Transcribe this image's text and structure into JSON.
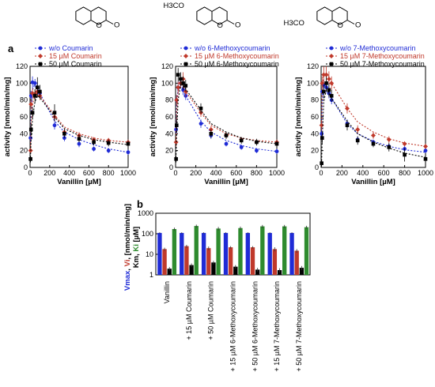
{
  "panel_labels": {
    "a": "a",
    "b": "b"
  },
  "structures": [
    {
      "name": "coumarin-structure",
      "substituent": ""
    },
    {
      "name": "6-methoxycoumarin-structure",
      "substituent": "H3CO"
    },
    {
      "name": "7-methoxycoumarin-structure",
      "substituent": "H3CO"
    }
  ],
  "colors": {
    "blue": "#1f2bd6",
    "red": "#c0392b",
    "black": "#000000",
    "green": "#2e8b2e"
  },
  "chart_data": [
    {
      "type": "scatter",
      "panel": "a-left",
      "xlabel": "Vanillin [µM]",
      "ylabel": "activity [nmol/min/mg]",
      "xlim": [
        0,
        1000
      ],
      "ylim": [
        0,
        120
      ],
      "xticks": [
        0,
        200,
        400,
        600,
        800,
        1000
      ],
      "yticks": [
        0,
        20,
        40,
        60,
        80,
        100,
        120
      ],
      "legend_position": "top-center",
      "series": [
        {
          "name": "w/o Coumarin",
          "color": "#1f2bd6",
          "marker": "circle",
          "x": [
            5,
            10,
            25,
            50,
            75,
            100,
            250,
            350,
            500,
            650,
            800,
            1000
          ],
          "y": [
            35,
            85,
            101,
            100,
            95,
            88,
            50,
            35,
            28,
            22,
            20,
            18
          ],
          "err": [
            5,
            6,
            7,
            5,
            6,
            5,
            5,
            4,
            4,
            3,
            3,
            3
          ],
          "fit_y": [
            40,
            62,
            92,
            100,
            95,
            88,
            55,
            42,
            33,
            27,
            22,
            18
          ]
        },
        {
          "name": "15 µM Coumarin",
          "color": "#c0392b",
          "marker": "diamond",
          "x": [
            5,
            10,
            25,
            50,
            75,
            100,
            250,
            350,
            500,
            650,
            800,
            1000
          ],
          "y": [
            20,
            75,
            88,
            87,
            90,
            85,
            60,
            42,
            38,
            33,
            32,
            30
          ],
          "err": [
            4,
            6,
            6,
            6,
            6,
            5,
            5,
            4,
            4,
            3,
            3,
            3
          ],
          "fit_y": [
            25,
            50,
            75,
            86,
            88,
            85,
            62,
            48,
            40,
            35,
            32,
            30
          ]
        },
        {
          "name": "50 µM Coumarin",
          "color": "#000000",
          "marker": "square",
          "x": [
            5,
            10,
            25,
            50,
            75,
            100,
            250,
            350,
            500,
            650,
            800,
            1000
          ],
          "y": [
            10,
            45,
            65,
            85,
            95,
            90,
            65,
            40,
            34,
            30,
            29,
            28
          ],
          "err": [
            4,
            7,
            7,
            8,
            12,
            8,
            10,
            5,
            4,
            4,
            4,
            4
          ],
          "fit_y": [
            12,
            30,
            58,
            78,
            85,
            83,
            60,
            46,
            38,
            33,
            30,
            27
          ]
        }
      ]
    },
    {
      "type": "scatter",
      "panel": "a-middle",
      "xlabel": "Vanillin [µM]",
      "ylabel": "activity [nmol/min/mg]",
      "xlim": [
        0,
        1000
      ],
      "ylim": [
        0,
        120
      ],
      "xticks": [
        0,
        200,
        400,
        600,
        800,
        1000
      ],
      "yticks": [
        0,
        20,
        40,
        60,
        80,
        100,
        120
      ],
      "legend_position": "top-center",
      "series": [
        {
          "name": "w/o 6-Methoxycoumarin",
          "color": "#1f2bd6",
          "marker": "circle",
          "x": [
            5,
            10,
            25,
            50,
            75,
            100,
            250,
            350,
            500,
            650,
            800,
            1000
          ],
          "y": [
            45,
            80,
            95,
            100,
            92,
            85,
            52,
            38,
            28,
            24,
            20,
            19
          ],
          "err": [
            5,
            6,
            7,
            6,
            6,
            5,
            5,
            4,
            3,
            3,
            3,
            3
          ],
          "fit_y": [
            50,
            75,
            95,
            98,
            92,
            85,
            55,
            42,
            32,
            26,
            22,
            19
          ]
        },
        {
          "name": "15 µM 6-Methoxycoumarin",
          "color": "#c0392b",
          "marker": "diamond",
          "x": [
            5,
            10,
            25,
            50,
            75,
            100,
            250,
            350,
            500,
            650,
            800,
            1000
          ],
          "y": [
            30,
            80,
            95,
            100,
            105,
            90,
            65,
            45,
            38,
            33,
            30,
            30
          ],
          "err": [
            5,
            6,
            7,
            6,
            8,
            6,
            5,
            4,
            4,
            3,
            3,
            3
          ],
          "fit_y": [
            35,
            65,
            90,
            100,
            97,
            90,
            65,
            50,
            40,
            35,
            32,
            30
          ]
        },
        {
          "name": "50 µM 6-Methoxycoumarin",
          "color": "#000000",
          "marker": "square",
          "x": [
            5,
            10,
            25,
            50,
            75,
            100,
            250,
            350,
            500,
            650,
            800,
            1000
          ],
          "y": [
            10,
            50,
            110,
            105,
            100,
            97,
            70,
            40,
            38,
            32,
            30,
            28
          ],
          "err": [
            4,
            7,
            8,
            8,
            8,
            7,
            6,
            5,
            4,
            4,
            4,
            4
          ],
          "fit_y": [
            15,
            40,
            80,
            98,
            97,
            93,
            68,
            52,
            42,
            35,
            31,
            28
          ]
        }
      ]
    },
    {
      "type": "scatter",
      "panel": "a-right",
      "xlabel": "Vanillin [µM]",
      "ylabel": "activity [nmol/min/mg]",
      "xlim": [
        0,
        1000
      ],
      "ylim": [
        0,
        120
      ],
      "xticks": [
        0,
        200,
        400,
        600,
        800,
        1000
      ],
      "yticks": [
        0,
        20,
        40,
        60,
        80,
        100,
        120
      ],
      "legend_position": "top-center",
      "series": [
        {
          "name": "w/o 7-Methoxycoumarin",
          "color": "#1f2bd6",
          "marker": "circle",
          "x": [
            5,
            10,
            25,
            50,
            75,
            100,
            250,
            350,
            500,
            650,
            800,
            1000
          ],
          "y": [
            40,
            90,
            98,
            95,
            88,
            80,
            52,
            33,
            30,
            25,
            22,
            20
          ],
          "err": [
            5,
            6,
            7,
            6,
            6,
            5,
            5,
            4,
            3,
            3,
            3,
            3
          ],
          "fit_y": [
            45,
            75,
            95,
            96,
            90,
            82,
            52,
            40,
            31,
            25,
            21,
            18
          ]
        },
        {
          "name": "15 µM 7-Methoxycoumarin",
          "color": "#c0392b",
          "marker": "diamond",
          "x": [
            5,
            10,
            25,
            50,
            75,
            100,
            250,
            350,
            500,
            650,
            800,
            1000
          ],
          "y": [
            50,
            100,
            110,
            110,
            105,
            100,
            70,
            45,
            38,
            33,
            28,
            25
          ],
          "err": [
            6,
            8,
            10,
            10,
            9,
            8,
            6,
            5,
            4,
            4,
            3,
            3
          ],
          "fit_y": [
            50,
            90,
            110,
            112,
            108,
            100,
            70,
            54,
            42,
            34,
            29,
            25
          ]
        },
        {
          "name": "50 µM 7-Methoxycoumarin",
          "color": "#000000",
          "marker": "square",
          "x": [
            5,
            10,
            25,
            50,
            75,
            100,
            250,
            350,
            500,
            650,
            800,
            1000
          ],
          "y": [
            5,
            35,
            90,
            100,
            92,
            85,
            50,
            32,
            28,
            24,
            15,
            10
          ],
          "err": [
            4,
            7,
            8,
            8,
            8,
            7,
            6,
            5,
            4,
            5,
            8,
            6
          ],
          "fit_y": [
            8,
            30,
            78,
            92,
            88,
            82,
            55,
            40,
            30,
            23,
            17,
            12
          ]
        }
      ]
    },
    {
      "type": "bar",
      "panel": "b",
      "ylabel_parts": [
        {
          "text": "Vmax",
          "color": "#1f2bd6"
        },
        {
          "text": ", ",
          "color": "#000000"
        },
        {
          "text": "Vi",
          "color": "#c0392b"
        },
        {
          "text": ", [nmol/min/mg]",
          "color": "#000000"
        }
      ],
      "ylabel2_parts": [
        {
          "text": "Km",
          "color": "#000000"
        },
        {
          "text": ", ",
          "color": "#000000"
        },
        {
          "text": "Ki",
          "color": "#2e8b2e"
        },
        {
          "text": " [µM]",
          "color": "#000000"
        }
      ],
      "yscale": "log",
      "ylim": [
        1,
        1000
      ],
      "yticks": [
        1,
        10,
        100,
        1000
      ],
      "categories": [
        "Vanillin",
        "+ 15 µM Coumarin",
        "+ 50 µM Coumarin",
        "+ 15 µM 6-Methoxycoumarin",
        "+ 50 µM 6-Methoxycoumarin",
        "+ 15 µM 7-Methoxycoumarin",
        "+ 50 µM 7-Methoxycoumarin"
      ],
      "series": [
        {
          "key": "Vmax",
          "color": "#1f2bd6",
          "values": [
            110,
            110,
            110,
            110,
            110,
            110,
            110
          ],
          "err": [
            8,
            8,
            8,
            8,
            8,
            8,
            8
          ]
        },
        {
          "key": "Vi",
          "color": "#c0392b",
          "values": [
            18,
            25,
            20,
            22,
            22,
            18,
            15
          ],
          "err": [
            3,
            4,
            4,
            3,
            3,
            4,
            3
          ]
        },
        {
          "key": "Km",
          "color": "#000000",
          "values": [
            2,
            3,
            4,
            2.5,
            1.8,
            1.7,
            2.2
          ],
          "err": [
            0.4,
            0.6,
            0.8,
            0.5,
            0.4,
            0.4,
            0.5
          ]
        },
        {
          "key": "Ki",
          "color": "#2e8b2e",
          "values": [
            170,
            240,
            180,
            190,
            230,
            230,
            210
          ],
          "err": [
            30,
            40,
            35,
            35,
            40,
            40,
            35
          ]
        }
      ]
    }
  ]
}
